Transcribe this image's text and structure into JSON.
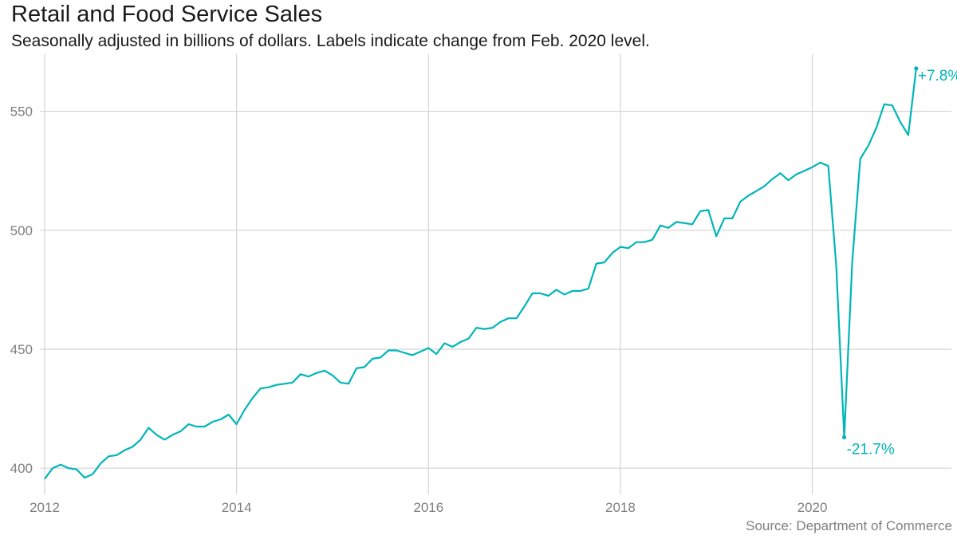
{
  "chart_data": {
    "type": "line",
    "title": "Retail and Food Service Sales",
    "subtitle": "Seasonally adjusted in billions of dollars. Labels indicate change from  Feb. 2020 level.",
    "source": "Source: Department of Commerce",
    "xlabel": "",
    "ylabel": "",
    "xlim": [
      2011.95,
      2021.45
    ],
    "ylim": [
      389,
      574
    ],
    "x_ticks": [
      2012,
      2014,
      2016,
      2018,
      2020
    ],
    "x_tick_labels": [
      "2012",
      "2014",
      "2016",
      "2018",
      "2020"
    ],
    "y_ticks": [
      400,
      450,
      500,
      550
    ],
    "y_tick_labels": [
      "400",
      "450",
      "500",
      "550"
    ],
    "grid": true,
    "line_color": "#00b5b8",
    "series": [
      {
        "name": "Retail and Food Service Sales",
        "points": [
          [
            2012.0,
            395.5
          ],
          [
            2012.083,
            400.0
          ],
          [
            2012.167,
            401.5
          ],
          [
            2012.25,
            400.0
          ],
          [
            2012.333,
            399.5
          ],
          [
            2012.417,
            396.0
          ],
          [
            2012.5,
            397.5
          ],
          [
            2012.583,
            402.0
          ],
          [
            2012.667,
            405.0
          ],
          [
            2012.75,
            405.5
          ],
          [
            2012.833,
            407.5
          ],
          [
            2012.917,
            409.0
          ],
          [
            2013.0,
            412.0
          ],
          [
            2013.083,
            417.0
          ],
          [
            2013.167,
            414.0
          ],
          [
            2013.25,
            412.0
          ],
          [
            2013.333,
            414.0
          ],
          [
            2013.417,
            415.5
          ],
          [
            2013.5,
            418.5
          ],
          [
            2013.583,
            417.5
          ],
          [
            2013.667,
            417.5
          ],
          [
            2013.75,
            419.5
          ],
          [
            2013.833,
            420.5
          ],
          [
            2013.917,
            422.5
          ],
          [
            2014.0,
            418.5
          ],
          [
            2014.083,
            424.5
          ],
          [
            2014.167,
            429.5
          ],
          [
            2014.25,
            433.5
          ],
          [
            2014.333,
            434.0
          ],
          [
            2014.417,
            435.0
          ],
          [
            2014.5,
            435.5
          ],
          [
            2014.583,
            436.0
          ],
          [
            2014.667,
            439.5
          ],
          [
            2014.75,
            438.5
          ],
          [
            2014.833,
            440.0
          ],
          [
            2014.917,
            441.0
          ],
          [
            2015.0,
            439.0
          ],
          [
            2015.083,
            436.0
          ],
          [
            2015.167,
            435.5
          ],
          [
            2015.25,
            442.0
          ],
          [
            2015.333,
            442.5
          ],
          [
            2015.417,
            446.0
          ],
          [
            2015.5,
            446.5
          ],
          [
            2015.583,
            449.5
          ],
          [
            2015.667,
            449.5
          ],
          [
            2015.75,
            448.5
          ],
          [
            2015.833,
            447.5
          ],
          [
            2015.917,
            449.0
          ],
          [
            2016.0,
            450.5
          ],
          [
            2016.083,
            448.0
          ],
          [
            2016.167,
            452.5
          ],
          [
            2016.25,
            451.0
          ],
          [
            2016.333,
            453.0
          ],
          [
            2016.417,
            454.5
          ],
          [
            2016.5,
            459.0
          ],
          [
            2016.583,
            458.5
          ],
          [
            2016.667,
            459.0
          ],
          [
            2016.75,
            461.5
          ],
          [
            2016.833,
            463.0
          ],
          [
            2016.917,
            463.0
          ],
          [
            2017.0,
            468.0
          ],
          [
            2017.083,
            473.5
          ],
          [
            2017.167,
            473.5
          ],
          [
            2017.25,
            472.5
          ],
          [
            2017.333,
            475.0
          ],
          [
            2017.417,
            473.0
          ],
          [
            2017.5,
            474.5
          ],
          [
            2017.583,
            474.5
          ],
          [
            2017.667,
            475.5
          ],
          [
            2017.75,
            486.0
          ],
          [
            2017.833,
            486.5
          ],
          [
            2017.917,
            490.5
          ],
          [
            2018.0,
            493.0
          ],
          [
            2018.083,
            492.5
          ],
          [
            2018.167,
            495.0
          ],
          [
            2018.25,
            495.0
          ],
          [
            2018.333,
            496.0
          ],
          [
            2018.417,
            502.0
          ],
          [
            2018.5,
            501.0
          ],
          [
            2018.583,
            503.5
          ],
          [
            2018.667,
            503.0
          ],
          [
            2018.75,
            502.5
          ],
          [
            2018.833,
            508.0
          ],
          [
            2018.917,
            508.5
          ],
          [
            2019.0,
            497.5
          ],
          [
            2019.083,
            505.0
          ],
          [
            2019.167,
            505.0
          ],
          [
            2019.25,
            512.0
          ],
          [
            2019.333,
            514.5
          ],
          [
            2019.417,
            516.5
          ],
          [
            2019.5,
            518.5
          ],
          [
            2019.583,
            521.5
          ],
          [
            2019.667,
            524.0
          ],
          [
            2019.75,
            521.0
          ],
          [
            2019.833,
            523.5
          ],
          [
            2019.917,
            525.0
          ],
          [
            2020.0,
            526.5
          ],
          [
            2020.083,
            528.5
          ],
          [
            2020.167,
            527.0
          ],
          [
            2020.25,
            485.0
          ],
          [
            2020.333,
            413.0
          ],
          [
            2020.417,
            487.0
          ],
          [
            2020.5,
            530.0
          ],
          [
            2020.583,
            535.5
          ],
          [
            2020.667,
            543.0
          ],
          [
            2020.75,
            553.0
          ],
          [
            2020.833,
            552.5
          ],
          [
            2020.917,
            545.5
          ],
          [
            2021.0,
            540.0
          ],
          [
            2021.083,
            568.0
          ]
        ]
      }
    ],
    "annotations": [
      {
        "text": "-21.7%",
        "x": 2020.333,
        "y": 413.0
      },
      {
        "text": "+7.8%",
        "x": 2021.083,
        "y": 568.0
      }
    ]
  }
}
